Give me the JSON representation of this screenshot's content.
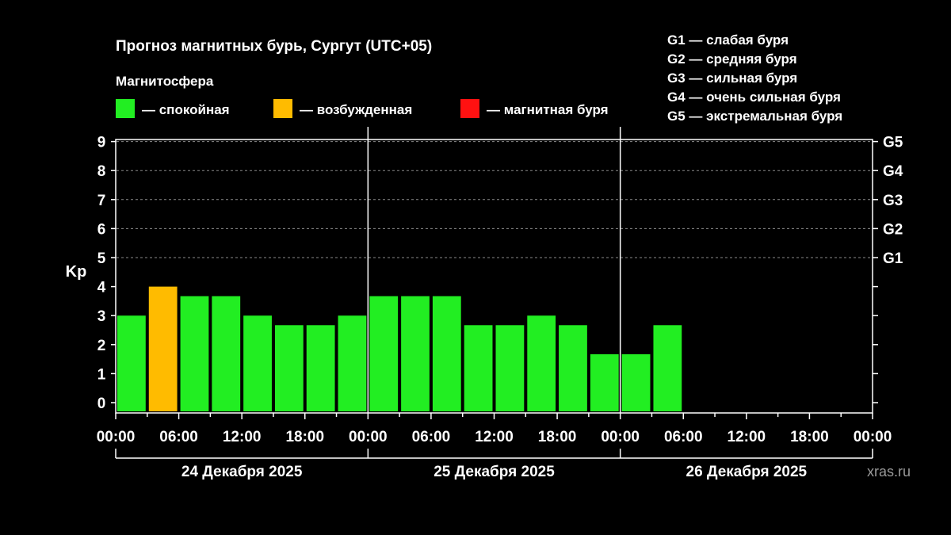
{
  "chart_data": {
    "type": "bar",
    "title": "Прогноз магнитных бурь, Сургут (UTC+05)",
    "legend_title": "Магнитосфера",
    "legend": [
      {
        "label": "— спокойная",
        "color": "#22ee22"
      },
      {
        "label": "— возбужденная",
        "color": "#ffbb00"
      },
      {
        "label": "— магнитная буря",
        "color": "#ff1111"
      }
    ],
    "storm_scale": [
      "G1 — слабая буря",
      "G2 — средняя буря",
      "G3 — сильная буря",
      "G4 — очень сильная буря",
      "G5 — экстремальная буря"
    ],
    "ylabel": "Kp",
    "ylim": [
      0,
      9
    ],
    "y_ticks": [
      "0",
      "1",
      "2",
      "3",
      "4",
      "5",
      "6",
      "7",
      "8",
      "9"
    ],
    "right_ticks": [
      {
        "value": 5,
        "label": "G1"
      },
      {
        "value": 6,
        "label": "G2"
      },
      {
        "value": 7,
        "label": "G3"
      },
      {
        "value": 8,
        "label": "G4"
      },
      {
        "value": 9,
        "label": "G5"
      }
    ],
    "x_ticks": [
      "00:00",
      "06:00",
      "12:00",
      "18:00",
      "00:00",
      "06:00",
      "12:00",
      "18:00",
      "00:00",
      "06:00",
      "12:00",
      "18:00",
      "00:00"
    ],
    "days": [
      "24 Декабря 2025",
      "25 Декабря 2025",
      "26 Декабря 2025"
    ],
    "bar_step_hours": 3,
    "total_hours": 72,
    "values": [
      3,
      4,
      3.67,
      3.67,
      3,
      2.67,
      2.67,
      3,
      3.67,
      3.67,
      3.67,
      2.67,
      2.67,
      3,
      2.67,
      1.67,
      1.67,
      2.67
    ],
    "levels": [
      "quiet",
      "active",
      "quiet",
      "quiet",
      "quiet",
      "quiet",
      "quiet",
      "quiet",
      "quiet",
      "quiet",
      "quiet",
      "quiet",
      "quiet",
      "quiet",
      "quiet",
      "quiet",
      "quiet",
      "quiet"
    ],
    "level_colors": {
      "quiet": "#22ee22",
      "active": "#ffbb00",
      "storm": "#ff1111"
    },
    "grid": "dashed at Kp 5–9",
    "watermark": "xras.ru"
  }
}
